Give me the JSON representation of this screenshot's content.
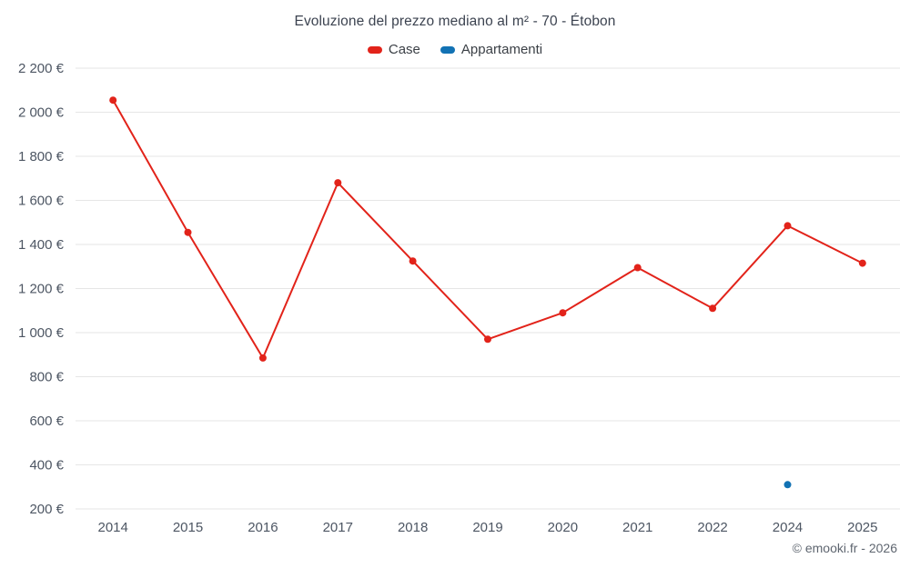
{
  "chart_data": {
    "type": "line",
    "title": "Evoluzione del prezzo mediano al m² - 70 - Étobon",
    "categories": [
      "2014",
      "2015",
      "2016",
      "2017",
      "2018",
      "2019",
      "2020",
      "2021",
      "2022",
      "2024",
      "2025"
    ],
    "series": [
      {
        "name": "Case",
        "color": "#e2231a",
        "values": [
          2055,
          1455,
          885,
          1680,
          1325,
          970,
          1090,
          1295,
          1110,
          1485,
          1315
        ]
      },
      {
        "name": "Appartamenti",
        "color": "#1272b4",
        "values": [
          null,
          null,
          null,
          null,
          null,
          null,
          null,
          null,
          null,
          310,
          null
        ]
      }
    ],
    "ylim": [
      200,
      2200
    ],
    "y_tick_step": 200,
    "y_tick_suffix": " €",
    "grid": "horizontal",
    "legend_position": "top",
    "xlabel": "",
    "ylabel": ""
  },
  "footer": {
    "credit": "© emooki.fr - 2026"
  }
}
